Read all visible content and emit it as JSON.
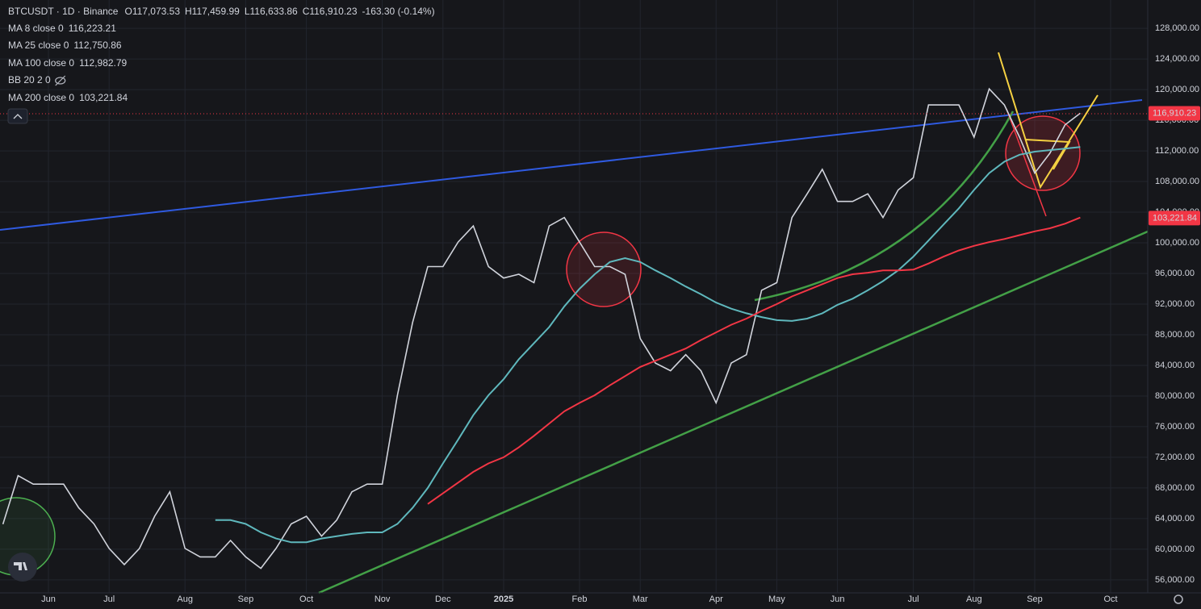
{
  "chart_data": {
    "type": "line",
    "header": {
      "symbol": "BTCUSDT · 1D · Binance",
      "open": "O117,073.53",
      "high": "H117,459.99",
      "low": "L116,633.86",
      "close": "C116,910.23",
      "change": "-163.30 (-0.14%)"
    },
    "indicators": [
      {
        "name": "MA 8 close 0",
        "value": "116,223.21",
        "color": "#f5b041"
      },
      {
        "name": "MA 25 close 0",
        "value": "112,750.86",
        "color": "#e040fb"
      },
      {
        "name": "BB 20 2 0"
      }
    ],
    "price_labels": [
      {
        "label": "116,910.23",
        "value": 116910.23,
        "color": "#f23645"
      },
      {
        "label": "103,221.84",
        "value": 103221.84,
        "color": "#f23645"
      }
    ],
    "categories": [
      null,
      null,
      null,
      "Jun",
      null,
      null,
      null,
      "Jul",
      null,
      null,
      null,
      null,
      "Aug",
      null,
      null,
      null,
      "Sep",
      null,
      null,
      null,
      "Oct",
      null,
      null,
      null,
      null,
      "Nov",
      null,
      null,
      null,
      "Dec",
      null,
      null,
      null,
      "2025",
      null,
      null,
      null,
      null,
      "Feb",
      null,
      null,
      null,
      "Mar",
      null,
      null,
      null,
      null,
      "Apr",
      null,
      null,
      null,
      "May",
      null,
      null,
      null,
      "Jun",
      null,
      null,
      null,
      null,
      "Jul",
      null,
      null,
      null,
      "Aug",
      null,
      null,
      null,
      "Sep",
      null,
      null,
      null,
      null,
      "Oct",
      null
    ],
    "series": [
      {
        "name": "BTCUSDT · 1D · Binance",
        "color": "#d1d4dc",
        "values": [
          63260,
          69600,
          68500,
          68500,
          68500,
          65400,
          63300,
          60100,
          58000,
          60100,
          64300,
          67500,
          60100,
          59000,
          59000,
          61150,
          59000,
          57500,
          60100,
          63300,
          64300,
          61700,
          63800,
          67500,
          68500,
          68500,
          80100,
          89600,
          96900,
          96900,
          100100,
          102200,
          96900,
          95400,
          95900,
          94800,
          102200,
          103300,
          100100,
          96900,
          96900,
          95900,
          87500,
          84300,
          83300,
          85400,
          83300,
          79100,
          84300,
          85400,
          93800,
          94800,
          103300,
          106400,
          109600,
          105400,
          105400,
          106400,
          103300,
          106900,
          108500,
          118000,
          118000,
          118000,
          113800,
          120100,
          118000,
          113800,
          109100,
          111700,
          115400,
          116910,
          null,
          null,
          null
        ]
      },
      {
        "name": "MA 100 close 0",
        "color": "#5fb8bd",
        "last": "112,982.79",
        "values": [
          null,
          null,
          null,
          null,
          null,
          null,
          null,
          null,
          null,
          null,
          null,
          null,
          null,
          null,
          63800,
          63800,
          63300,
          62200,
          61400,
          60900,
          60900,
          61400,
          61700,
          62000,
          62200,
          62200,
          63300,
          65400,
          68000,
          71200,
          74300,
          77500,
          80100,
          82200,
          84800,
          86900,
          89000,
          91700,
          94000,
          95900,
          97500,
          98000,
          97500,
          96400,
          95400,
          94300,
          93300,
          92200,
          91400,
          90800,
          90300,
          89900,
          89800,
          90100,
          90800,
          91900,
          92700,
          93800,
          95000,
          96400,
          98200,
          100300,
          102400,
          104500,
          106900,
          109100,
          110600,
          111500,
          111900,
          112100,
          112300,
          112500,
          null,
          null,
          null
        ]
      },
      {
        "name": "MA 200 close 0",
        "color": "#f23645",
        "last": "103,221.84",
        "values": [
          null,
          null,
          null,
          null,
          null,
          null,
          null,
          null,
          null,
          null,
          null,
          null,
          null,
          null,
          null,
          null,
          null,
          null,
          null,
          null,
          null,
          null,
          null,
          null,
          null,
          null,
          null,
          null,
          65900,
          67300,
          68700,
          70100,
          71200,
          72000,
          73300,
          74800,
          76400,
          78000,
          79100,
          80100,
          81400,
          82600,
          83800,
          84600,
          85400,
          86200,
          87300,
          88300,
          89300,
          90100,
          91100,
          92000,
          93000,
          93800,
          94600,
          95400,
          95900,
          96100,
          96400,
          96400,
          96500,
          97300,
          98200,
          99000,
          99600,
          100100,
          100500,
          101000,
          101500,
          101900,
          102500,
          103300,
          null,
          null,
          null
        ]
      }
    ],
    "ylim": [
      54300,
      131700
    ],
    "yticks": [
      {
        "value": 56000,
        "label": "56,000.00"
      },
      {
        "value": 60000,
        "label": "60,000.00"
      },
      {
        "value": 64000,
        "label": "64,000.00"
      },
      {
        "value": 68000,
        "label": "68,000.00"
      },
      {
        "value": 72000,
        "label": "72,000.00"
      },
      {
        "value": 76000,
        "label": "76,000.00"
      },
      {
        "value": 80000,
        "label": "80,000.00"
      },
      {
        "value": 84000,
        "label": "84,000.00"
      },
      {
        "value": 88000,
        "label": "88,000.00"
      },
      {
        "value": 92000,
        "label": "92,000.00"
      },
      {
        "value": 96000,
        "label": "96,000.00"
      },
      {
        "value": 100000,
        "label": "100,000.00"
      },
      {
        "value": 104000,
        "label": "104,000.00"
      },
      {
        "value": 108000,
        "label": "108,000.00"
      },
      {
        "value": 112000,
        "label": "112,000.00"
      },
      {
        "value": 116000,
        "label": "116,000.00"
      },
      {
        "value": 120000,
        "label": "120,000.00"
      },
      {
        "value": 124000,
        "label": "124,000.00"
      },
      {
        "value": 128000,
        "label": "128,000.00"
      }
    ],
    "grid": true
  }
}
